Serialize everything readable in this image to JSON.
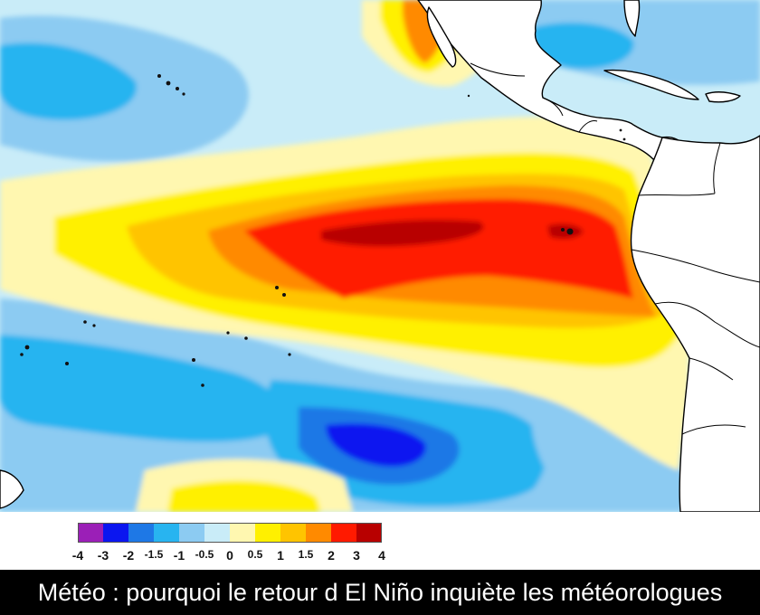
{
  "caption": "Météo : pourquoi le retour d El Niño inquiète les météorologues",
  "legend": {
    "ticks": [
      "-4",
      "-3",
      "-2",
      "-1.5",
      "-1",
      "-0.5",
      "0",
      "0.5",
      "1",
      "1.5",
      "2",
      "3",
      "4"
    ],
    "colors": [
      "#9B1FB7",
      "#0B16F0",
      "#1E78E6",
      "#28B4F0",
      "#8CCBF2",
      "#C9ECF8",
      "#FFF7B0",
      "#FFF000",
      "#FFC400",
      "#FF8A00",
      "#FF1A00",
      "#B80000"
    ]
  },
  "colors": {
    "land": "#ffffff",
    "coastline": "#000000",
    "ocean_base": "#C9ECF8"
  }
}
